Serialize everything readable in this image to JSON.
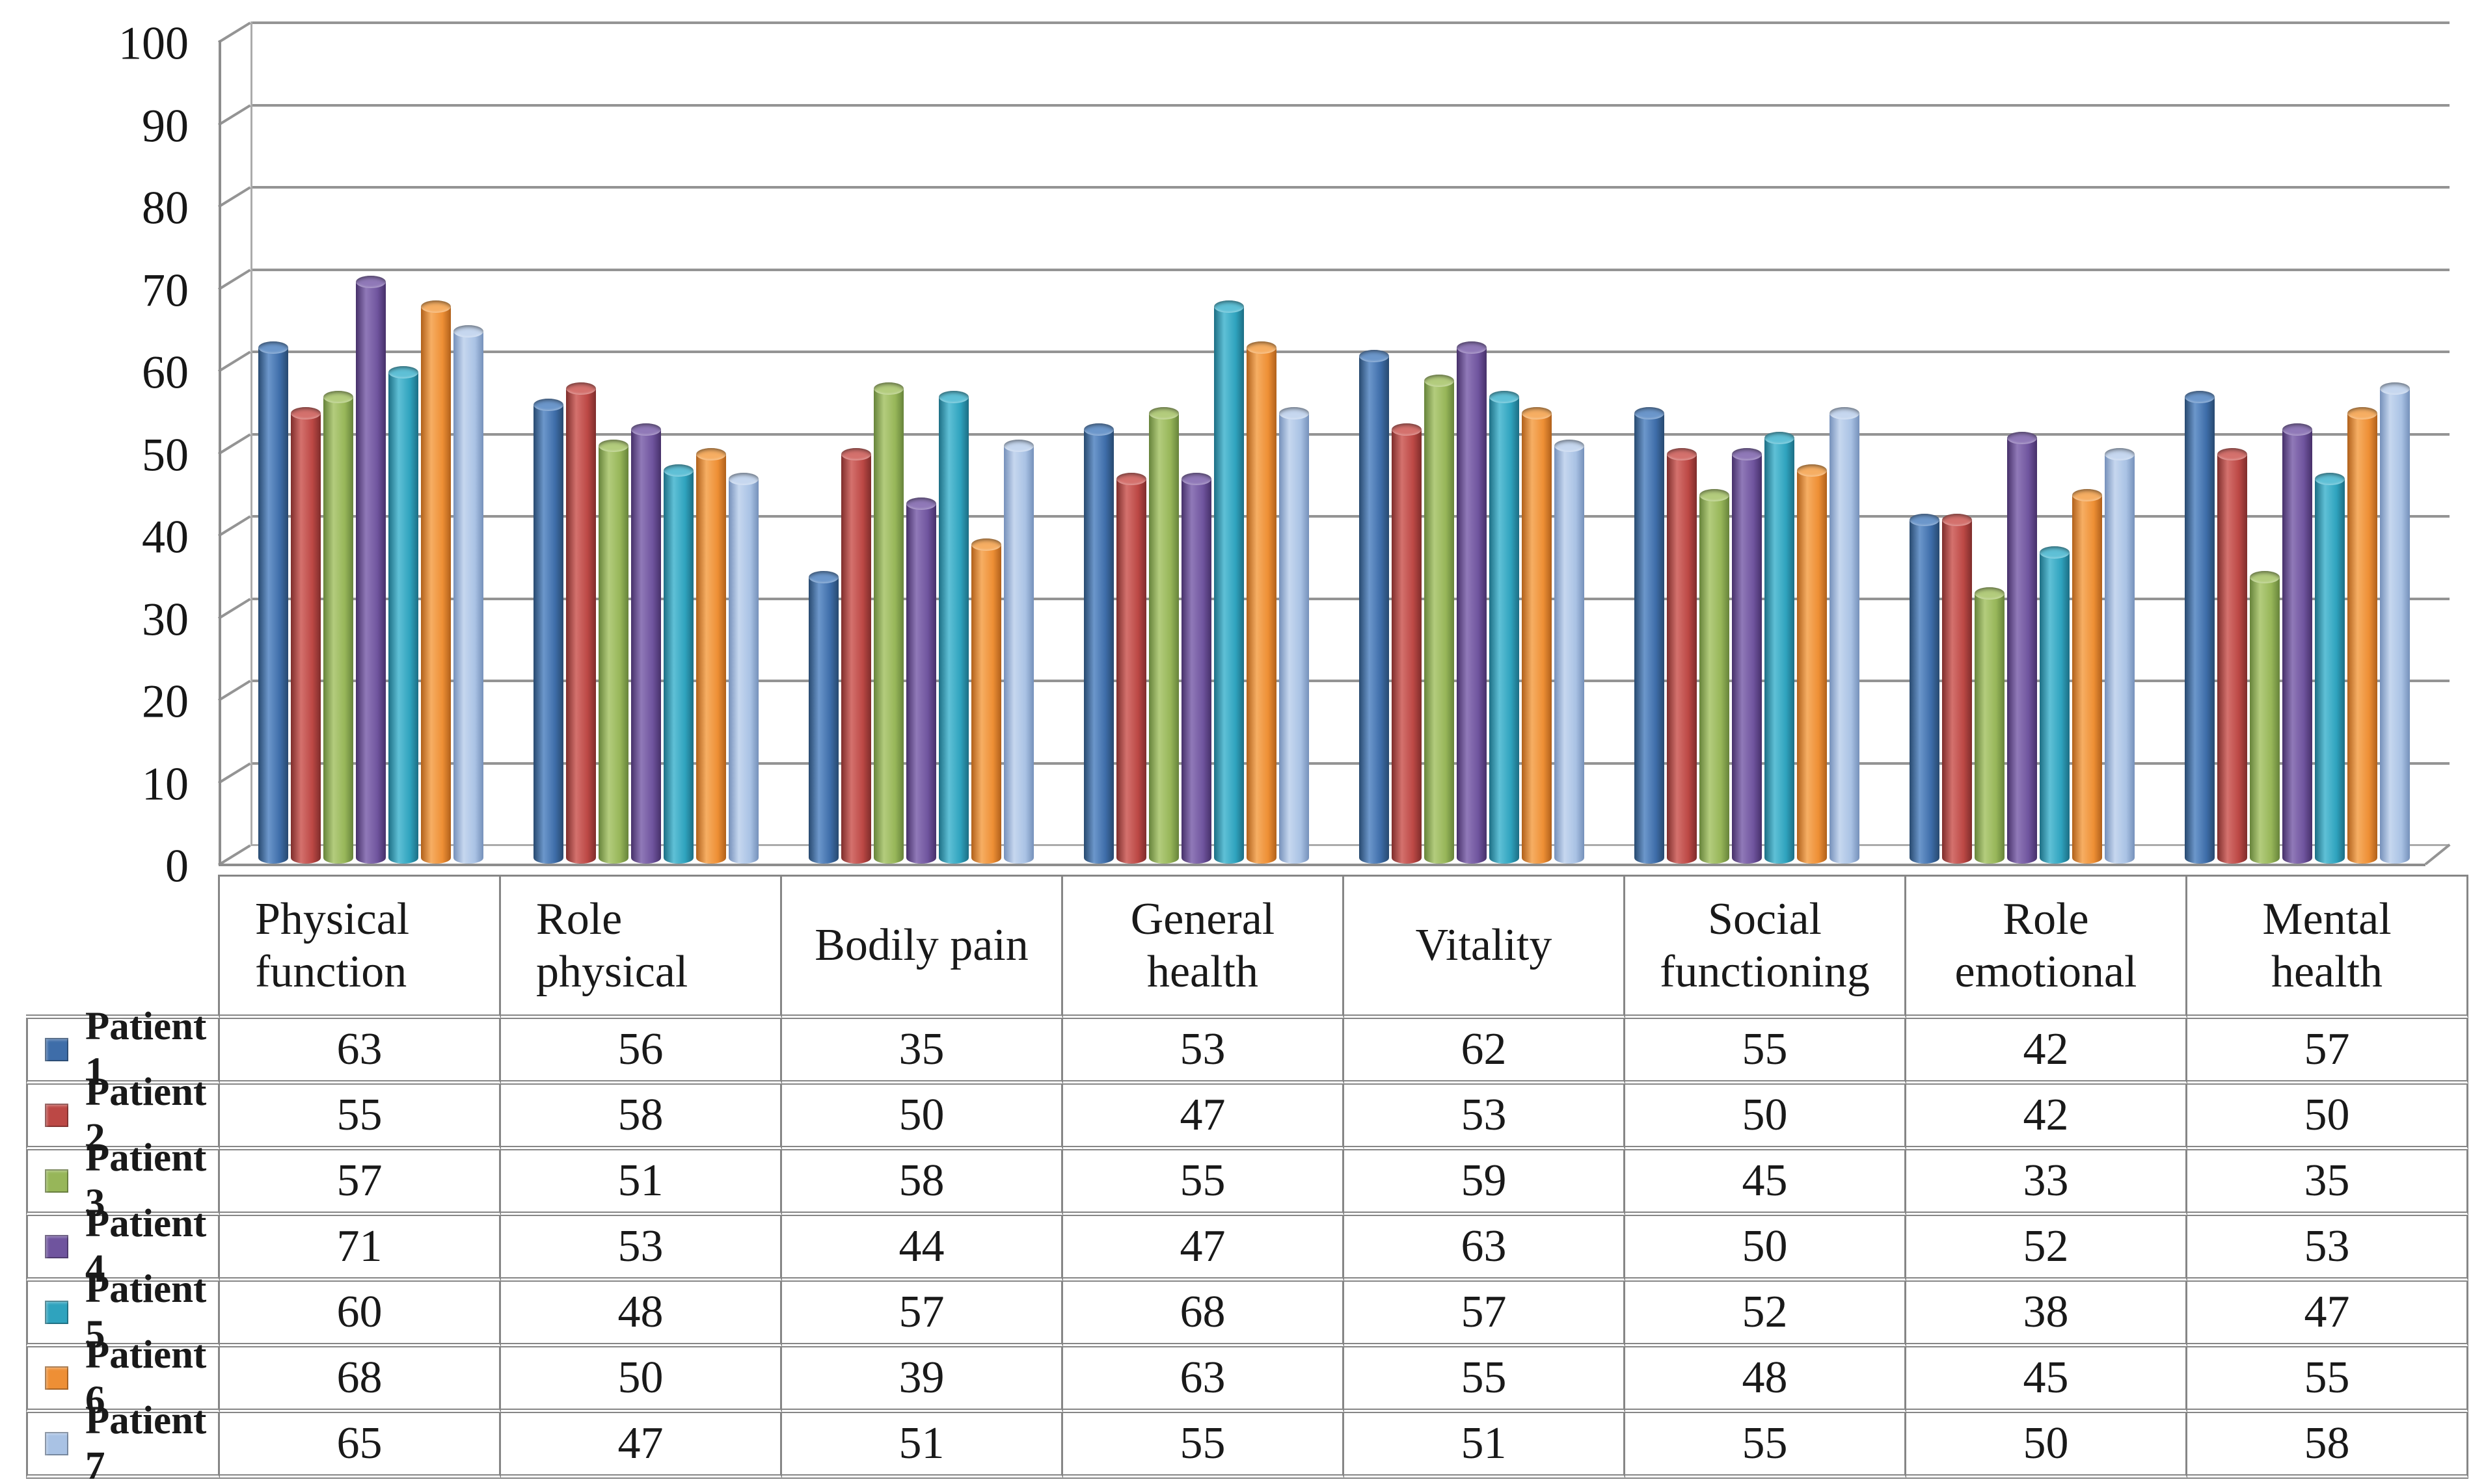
{
  "chart_data": {
    "type": "bar",
    "style": "3d-cylinder",
    "title": "",
    "xlabel": "",
    "ylabel": "",
    "grid": true,
    "legend_position": "table-left",
    "ylim": [
      0,
      100
    ],
    "y_tick_step": 10,
    "y_ticks": [
      0,
      10,
      20,
      30,
      40,
      50,
      60,
      70,
      80,
      90,
      100
    ],
    "categories": [
      "Physical function",
      "Role physical",
      "Bodily pain",
      "General health",
      "Vitality",
      "Social functioning",
      "Role emotional",
      "Mental health"
    ],
    "series": [
      {
        "name": "Patient 1",
        "color": "#3E6DA9",
        "color_light": "#6C97CB",
        "color_dark": "#27496F",
        "values": [
          63,
          56,
          35,
          53,
          62,
          55,
          42,
          57
        ]
      },
      {
        "name": "Patient 2",
        "color": "#BC4845",
        "color_light": "#D4716D",
        "color_dark": "#7E2D2B",
        "values": [
          55,
          58,
          50,
          47,
          53,
          50,
          42,
          50
        ]
      },
      {
        "name": "Patient 3",
        "color": "#97B659",
        "color_light": "#B3CC7D",
        "color_dark": "#66833A",
        "values": [
          57,
          51,
          58,
          55,
          59,
          45,
          33,
          35
        ]
      },
      {
        "name": "Patient 4",
        "color": "#6F549E",
        "color_light": "#9079B8",
        "color_dark": "#463069",
        "values": [
          71,
          53,
          44,
          47,
          63,
          50,
          52,
          53
        ]
      },
      {
        "name": "Patient 5",
        "color": "#2FA3BE",
        "color_light": "#5FC0D6",
        "color_dark": "#1C6E84",
        "values": [
          60,
          48,
          57,
          68,
          57,
          52,
          38,
          47
        ]
      },
      {
        "name": "Patient 6",
        "color": "#EE8F35",
        "color_light": "#F6AE63",
        "color_dark": "#B0601A",
        "values": [
          68,
          50,
          39,
          63,
          55,
          48,
          45,
          55
        ]
      },
      {
        "name": "Patient 7",
        "color": "#A9C2E4",
        "color_light": "#C6D7EF",
        "color_dark": "#7590BA",
        "values": [
          65,
          47,
          51,
          55,
          51,
          55,
          50,
          58
        ]
      }
    ]
  }
}
